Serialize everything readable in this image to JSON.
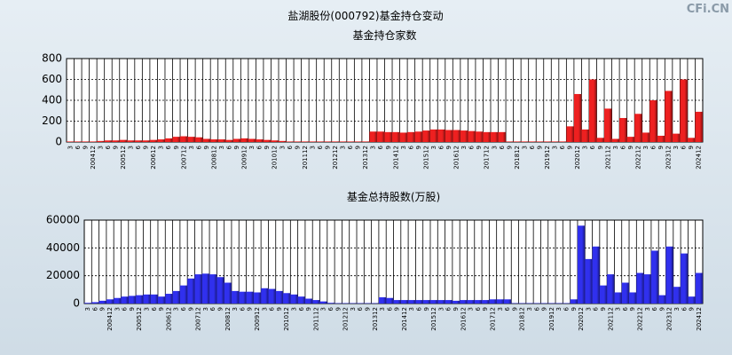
{
  "title": "盐湖股份(000792)基金持仓变动",
  "watermark": "CFi.CN",
  "chart_data": [
    {
      "type": "bar",
      "title": "基金持仓家数",
      "color": "#ee2020",
      "categories": [
        "3",
        "6",
        "9",
        "200412",
        "3",
        "6",
        "9",
        "200512",
        "3",
        "6",
        "9",
        "200612",
        "3",
        "6",
        "9",
        "200712",
        "3",
        "6",
        "9",
        "200812",
        "3",
        "6",
        "9",
        "200912",
        "3",
        "6",
        "9",
        "201012",
        "3",
        "6",
        "9",
        "201112",
        "3",
        "6",
        "9",
        "201212",
        "3",
        "6",
        "9",
        "201312",
        "3",
        "6",
        "9",
        "201412",
        "3",
        "6",
        "9",
        "201512",
        "3",
        "6",
        "9",
        "201612",
        "3",
        "6",
        "9",
        "201712",
        "3",
        "6",
        "9",
        "201812",
        "3",
        "6",
        "9",
        "201912",
        "3",
        "6",
        "9",
        "202012",
        "3",
        "6",
        "9",
        "202112",
        "3",
        "6",
        "9",
        "202212",
        "3",
        "6",
        "9",
        "202312",
        "3",
        "6",
        "9",
        "202412"
      ],
      "values": [
        5,
        5,
        5,
        5,
        10,
        15,
        15,
        20,
        15,
        15,
        15,
        20,
        25,
        35,
        50,
        55,
        50,
        45,
        30,
        25,
        25,
        20,
        30,
        35,
        30,
        25,
        20,
        15,
        10,
        5,
        5,
        5,
        5,
        5,
        5,
        5,
        5,
        5,
        5,
        5,
        100,
        100,
        95,
        95,
        90,
        95,
        100,
        110,
        120,
        120,
        115,
        115,
        110,
        105,
        100,
        95,
        95,
        95,
        5,
        5,
        5,
        5,
        5,
        5,
        5,
        5,
        150,
        460,
        120,
        600,
        40,
        320,
        30,
        230,
        50,
        270,
        90,
        400,
        60,
        490,
        80,
        600,
        40,
        290
      ],
      "ylim": [
        0,
        800
      ],
      "yticks": [
        0,
        200,
        400,
        600,
        800
      ],
      "grid": true
    },
    {
      "type": "bar",
      "title": "基金总持股数(万股)",
      "color": "#3030ee",
      "categories": [
        "3",
        "6",
        "9",
        "200412",
        "3",
        "6",
        "9",
        "200512",
        "3",
        "6",
        "9",
        "200612",
        "3",
        "6",
        "9",
        "200712",
        "3",
        "6",
        "9",
        "200812",
        "3",
        "6",
        "9",
        "200912",
        "3",
        "6",
        "9",
        "201012",
        "3",
        "6",
        "9",
        "201112",
        "3",
        "6",
        "9",
        "201212",
        "3",
        "6",
        "9",
        "201312",
        "3",
        "6",
        "9",
        "201412",
        "3",
        "6",
        "9",
        "201512",
        "3",
        "6",
        "9",
        "201612",
        "3",
        "6",
        "9",
        "201712",
        "3",
        "6",
        "9",
        "201812",
        "3",
        "6",
        "9",
        "201912",
        "3",
        "6",
        "9",
        "202012",
        "3",
        "6",
        "9",
        "202112",
        "3",
        "6",
        "9",
        "202212",
        "3",
        "6",
        "9",
        "202312",
        "3",
        "6",
        "9",
        "202412"
      ],
      "values": [
        500,
        1000,
        2000,
        3000,
        4000,
        5000,
        5500,
        6000,
        6500,
        6500,
        5000,
        7000,
        9000,
        13000,
        18000,
        21000,
        21500,
        21000,
        19000,
        15000,
        9000,
        8500,
        8500,
        8000,
        11000,
        10500,
        9000,
        7500,
        6500,
        5000,
        3500,
        2500,
        1500,
        500,
        300,
        300,
        300,
        300,
        300,
        300,
        4500,
        4000,
        2500,
        2500,
        2500,
        2500,
        2500,
        2500,
        2500,
        2500,
        2000,
        2500,
        2500,
        2500,
        2500,
        3000,
        3000,
        3000,
        300,
        300,
        300,
        300,
        300,
        300,
        300,
        300,
        3000,
        56000,
        32000,
        41000,
        13000,
        21000,
        8000,
        15000,
        8000,
        22000,
        21000,
        38000,
        6000,
        41000,
        12000,
        36000,
        5000,
        22000
      ],
      "ylim": [
        0,
        60000
      ],
      "yticks": [
        0,
        20000,
        40000,
        60000
      ],
      "grid": true
    }
  ]
}
